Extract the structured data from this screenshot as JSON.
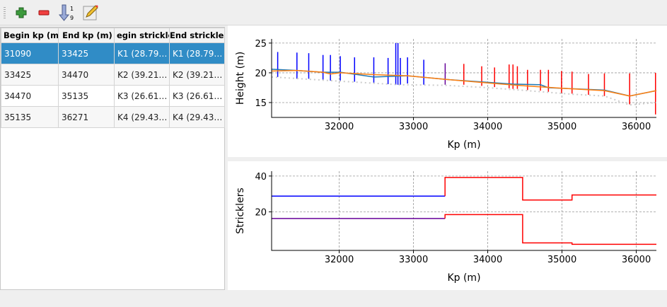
{
  "toolbar": {
    "buttons": [
      {
        "name": "add-row-button",
        "icon": "plus-icon"
      },
      {
        "name": "remove-row-button",
        "icon": "minus-icon"
      },
      {
        "name": "sort-button",
        "icon": "sort-numeric-icon",
        "glyph_top": "1",
        "glyph_bottom": "9"
      },
      {
        "name": "edit-button",
        "icon": "edit-note-icon"
      }
    ]
  },
  "table": {
    "headers": [
      "Begin kp (m)",
      "End kp (m)",
      "egin strickle",
      "End strickler"
    ],
    "rows": [
      [
        "31090",
        "33425",
        "K1 (28.79…",
        "K1 (28.79…"
      ],
      [
        "33425",
        "34470",
        "K2 (39.21…",
        "K2 (39.21…"
      ],
      [
        "34470",
        "35135",
        "K3 (26.61…",
        "K3 (26.61…"
      ],
      [
        "35135",
        "36271",
        "K4 (29.43…",
        "K4 (29.43…"
      ]
    ],
    "selected_row": 0
  },
  "colors": {
    "selection": "#308cc6",
    "blue": "#0000ff",
    "red": "#ff0000",
    "orange": "#ff7f0e",
    "steel": "#1f77b4",
    "purple": "#660099",
    "dotted": "#cccccc"
  },
  "chart_data": [
    {
      "type": "line",
      "xlabel": "Kp (m)",
      "ylabel": "Height (m)",
      "xlim": [
        31090,
        36271
      ],
      "ylim": [
        12.5,
        25.7
      ],
      "xticks": [
        32000,
        33000,
        34000,
        35000,
        36000
      ],
      "yticks": [
        15,
        20,
        25
      ],
      "grid": true,
      "series": [
        {
          "color": "#1f77b4",
          "x": [
            31090,
            31431,
            31782,
            32015,
            32466,
            32920,
            33427,
            34000,
            34336,
            34710,
            34817,
            35571,
            35911,
            36271
          ],
          "y": [
            20.6,
            20.4,
            20.1,
            20.1,
            19.3,
            19.5,
            18.9,
            18.4,
            18.1,
            18.0,
            17.5,
            17.1,
            16.1,
            17.0
          ]
        },
        {
          "color": "#ff7f0e",
          "x": [
            31090,
            31431,
            31782,
            31882,
            32015,
            32466,
            32920,
            33427,
            34000,
            34400,
            35000,
            35571,
            35911,
            36271
          ],
          "y": [
            20.3,
            20.4,
            20.1,
            19.8,
            20.0,
            19.7,
            19.5,
            18.9,
            18.3,
            17.9,
            17.4,
            17.0,
            16.1,
            17.0
          ]
        },
        {
          "color": "#cccccc",
          "dotted": true,
          "x": [
            31090,
            32000,
            32800,
            33427,
            34000,
            34536,
            35135,
            35571,
            35911,
            36271
          ],
          "y": [
            19.3,
            18.6,
            18.0,
            17.9,
            17.5,
            17.0,
            16.4,
            16.1,
            14.6,
            15.0
          ]
        }
      ],
      "bars": [
        [
          31172,
          23.5,
          19.3,
          "b"
        ],
        [
          31431,
          23.4,
          19,
          "b"
        ],
        [
          31590,
          23.3,
          19,
          "b"
        ],
        [
          31782,
          23,
          18.8,
          "b"
        ],
        [
          31882,
          23,
          18.7,
          "b"
        ],
        [
          32015,
          22.8,
          18.7,
          "b"
        ],
        [
          32207,
          22.6,
          18.5,
          "b"
        ],
        [
          32466,
          22.6,
          18.3,
          "b"
        ],
        [
          32658,
          22.5,
          18.1,
          "b"
        ],
        [
          32762,
          25,
          18,
          "b"
        ],
        [
          32791,
          25,
          18,
          "b"
        ],
        [
          32824,
          22.5,
          18,
          "b"
        ],
        [
          32920,
          22.6,
          18.2,
          "b"
        ],
        [
          33139,
          22.2,
          18,
          "b"
        ],
        [
          33427,
          21.6,
          18,
          "p"
        ],
        [
          33678,
          21.5,
          18,
          "r"
        ],
        [
          33919,
          21.1,
          17.8,
          "r"
        ],
        [
          34092,
          20.9,
          17.6,
          "r"
        ],
        [
          34288,
          21.4,
          17.4,
          "r"
        ],
        [
          34340,
          21.4,
          17.3,
          "r"
        ],
        [
          34399,
          21.1,
          17.3,
          "r"
        ],
        [
          34536,
          20.5,
          17.1,
          "r"
        ],
        [
          34710,
          20.5,
          17,
          "r"
        ],
        [
          34817,
          20.5,
          16.8,
          "r"
        ],
        [
          34994,
          20.3,
          16.6,
          "r"
        ],
        [
          35135,
          20.2,
          16.5,
          "r"
        ],
        [
          35357,
          19.8,
          16.3,
          "r"
        ],
        [
          35571,
          19.9,
          16.1,
          "r"
        ],
        [
          35911,
          19.9,
          14.7,
          "r"
        ],
        [
          36259,
          20,
          13,
          "r"
        ]
      ]
    },
    {
      "type": "line",
      "xlabel": "Kp (m)",
      "ylabel": "Stricklers",
      "xlim": [
        31090,
        36271
      ],
      "ylim": [
        -1.5,
        42.7
      ],
      "xticks": [
        32000,
        33000,
        34000,
        35000,
        36000
      ],
      "yticks": [
        20,
        40
      ],
      "grid": true,
      "series": [
        {
          "color": "#0000ff",
          "step": true,
          "x": [
            31090,
            33425
          ],
          "y": [
            28.79,
            28.79
          ]
        },
        {
          "color": "#ff0000",
          "step": true,
          "x": [
            33425,
            33425,
            34470,
            34470,
            35135,
            35135,
            36271
          ],
          "y": [
            28.79,
            39.21,
            39.21,
            26.61,
            26.61,
            29.43,
            29.43
          ]
        },
        {
          "color": "#660099",
          "step": true,
          "x": [
            31090,
            33425
          ],
          "y": [
            16.3,
            16.3
          ]
        },
        {
          "color": "#ff0000",
          "step": true,
          "x": [
            33425,
            33425,
            34470,
            34470,
            35135,
            35135,
            36271
          ],
          "y": [
            16.3,
            18.5,
            18.5,
            2.7,
            2.7,
            1.9,
            1.9
          ]
        }
      ]
    }
  ]
}
